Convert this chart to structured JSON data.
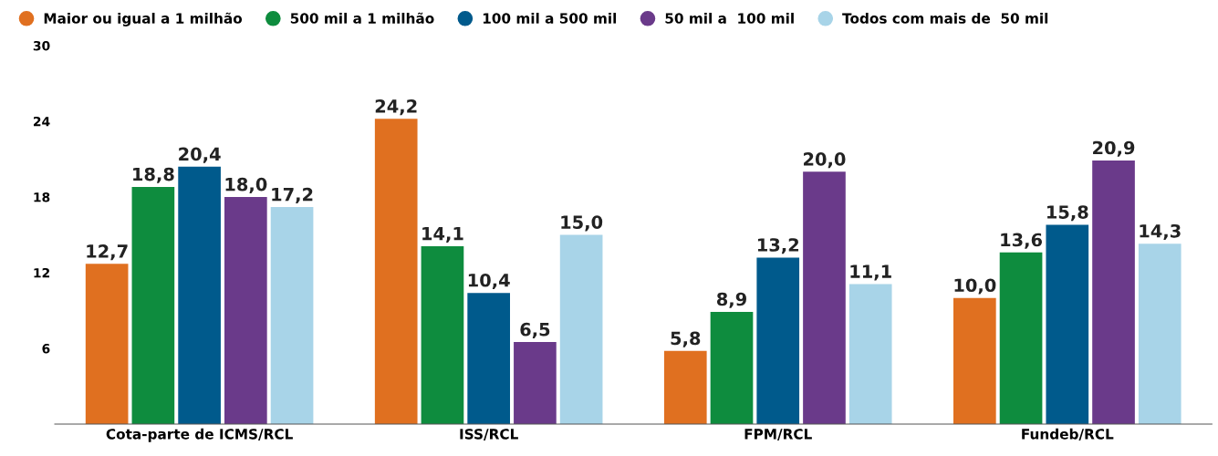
{
  "chart_data": {
    "type": "bar",
    "categories": [
      "Cota-parte de ICMS/RCL",
      "ISS/RCL",
      "FPM/RCL",
      "Fundeb/RCL"
    ],
    "series": [
      {
        "name": "Maior ou igual a 1 milhão",
        "color": "#e07020",
        "values": [
          12.7,
          24.2,
          5.8,
          10.0
        ],
        "value_labels": [
          "12,7",
          "24,2",
          "5,8",
          "10,0"
        ]
      },
      {
        "name": "500 mil a 1 milhão",
        "color": "#0e8c3e",
        "values": [
          18.8,
          14.1,
          8.9,
          13.6
        ],
        "value_labels": [
          "18,8",
          "14,1",
          "8,9",
          "13,6"
        ]
      },
      {
        "name": "100 mil a 500 mil",
        "color": "#005a8c",
        "values": [
          20.4,
          10.4,
          13.2,
          15.8
        ],
        "value_labels": [
          "20,4",
          "10,4",
          "13,2",
          "15,8"
        ]
      },
      {
        "name": "50 mil a  100 mil",
        "color": "#6a3a8a",
        "values": [
          18.0,
          6.5,
          20.0,
          20.9
        ],
        "value_labels": [
          "18,0",
          "6,5",
          "20,0",
          "20,9"
        ]
      },
      {
        "name": "Todos com mais de  50 mil",
        "color": "#a8d4e8",
        "values": [
          17.2,
          15.0,
          11.1,
          14.3
        ],
        "value_labels": [
          "17,2",
          "15,0",
          "11,1",
          "14,3"
        ]
      }
    ],
    "ylim": [
      0,
      30
    ],
    "yticks": [
      6,
      12,
      18,
      24,
      30
    ],
    "grid": false,
    "legend": "top left"
  }
}
